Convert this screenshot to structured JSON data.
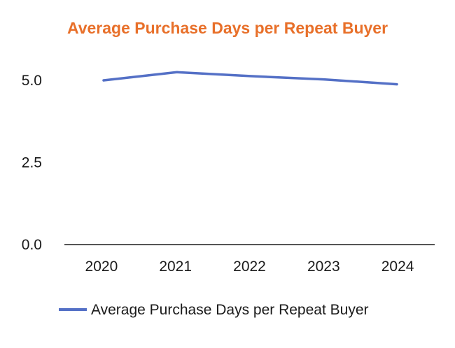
{
  "chart_data": {
    "type": "line",
    "title": "Average Purchase Days per Repeat Buyer",
    "categories": [
      "2020",
      "2021",
      "2022",
      "2023",
      "2024"
    ],
    "series": [
      {
        "name": "Average Purchase Days per Repeat Buyer",
        "values": [
          5.0,
          5.25,
          5.13,
          5.03,
          4.88
        ]
      }
    ],
    "ylim": [
      0,
      5.0
    ],
    "yticks": [
      "0.0",
      "2.5",
      "5.0"
    ],
    "xlabel": "",
    "ylabel": "",
    "grid": false,
    "legend_position": "bottom",
    "colors": {
      "title": "#e8702a",
      "series": "#5470c6",
      "axis": "#555555"
    }
  }
}
